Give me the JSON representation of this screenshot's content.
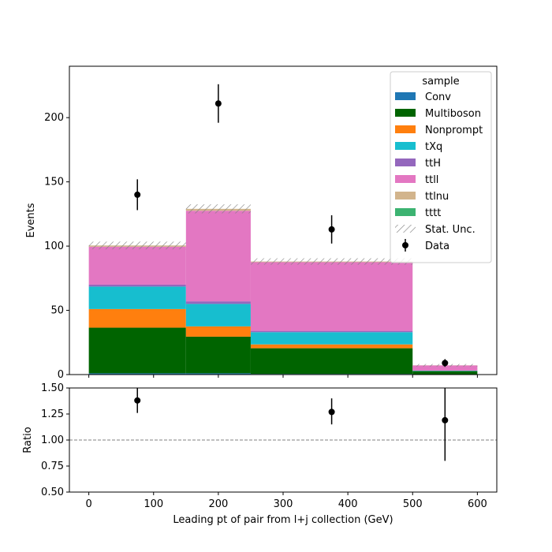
{
  "chart_data": {
    "type": "bar",
    "subtype": "stacked histogram with data points and ratio panel",
    "xlabel": "Leading pt of pair from l+j collection (GeV)",
    "ylabel": "Events",
    "ratio_ylabel": "Ratio",
    "xlim": [
      -30,
      630
    ],
    "ylim": [
      0,
      240
    ],
    "ratio_ylim": [
      0.5,
      1.5
    ],
    "x_ticks": [
      0,
      100,
      200,
      300,
      400,
      500,
      600
    ],
    "y_ticks": [
      0,
      50,
      100,
      150,
      200
    ],
    "ratio_ticks": [
      "0.50",
      "0.75",
      "1.00",
      "1.25",
      "1.50"
    ],
    "ratio_reference": 1.0,
    "bins": [
      [
        0,
        150
      ],
      [
        150,
        250
      ],
      [
        250,
        500
      ],
      [
        500,
        600
      ]
    ],
    "series": [
      {
        "name": "Conv",
        "color": "#1f77b4",
        "values": [
          1,
          1,
          0.5,
          0.2
        ]
      },
      {
        "name": "Multiboson",
        "color": "#006400",
        "values": [
          35.5,
          28.5,
          20,
          2.5
        ]
      },
      {
        "name": "Nonprompt",
        "color": "#ff7f0e",
        "values": [
          14.5,
          8,
          3,
          0
        ]
      },
      {
        "name": "tXq",
        "color": "#17becf",
        "values": [
          17.5,
          17.5,
          9.5,
          0.3
        ]
      },
      {
        "name": "ttH",
        "color": "#9467bd",
        "values": [
          1.5,
          2,
          1,
          0.1
        ]
      },
      {
        "name": "ttll",
        "color": "#e377c2",
        "values": [
          29.5,
          70.5,
          53.5,
          4
        ]
      },
      {
        "name": "ttlnu",
        "color": "#d2b48c",
        "values": [
          1,
          1.5,
          0.5,
          0.1
        ]
      },
      {
        "name": "tttt",
        "color": "#3cb371",
        "values": [
          0,
          0,
          0,
          0
        ]
      }
    ],
    "stat_unc": {
      "name": "Stat. Unc.",
      "values": [
        3,
        3.5,
        2.5,
        1
      ]
    },
    "data": {
      "name": "Data",
      "x": [
        75,
        200,
        375,
        550
      ],
      "y": [
        140,
        211,
        113,
        9
      ],
      "err": [
        12,
        15,
        11,
        3
      ]
    },
    "ratio": {
      "x": [
        75,
        375,
        550
      ],
      "y": [
        1.38,
        1.27,
        1.19
      ],
      "err_lo": [
        0.12,
        0.12,
        0.39
      ],
      "err_hi": [
        0.12,
        0.13,
        0.35
      ]
    },
    "legend": {
      "title": "sample",
      "placement": "top-right"
    }
  }
}
